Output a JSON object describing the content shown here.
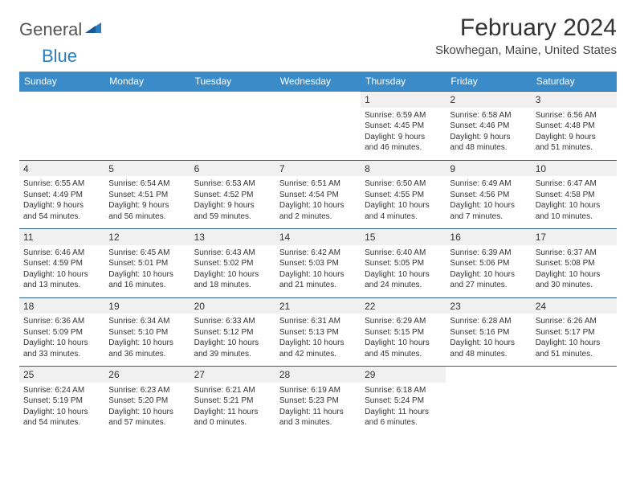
{
  "brand": {
    "part1": "General",
    "part2": "Blue"
  },
  "title": "February 2024",
  "location": "Skowhegan, Maine, United States",
  "colors": {
    "header_bg": "#3b8bc9",
    "border": "#2f5f8a",
    "daynum_bg": "#f0f0f0",
    "logo_gray": "#555555",
    "logo_blue": "#2b7bbf"
  },
  "weekdays": [
    "Sunday",
    "Monday",
    "Tuesday",
    "Wednesday",
    "Thursday",
    "Friday",
    "Saturday"
  ],
  "weeks": [
    [
      {
        "n": "",
        "lines": []
      },
      {
        "n": "",
        "lines": []
      },
      {
        "n": "",
        "lines": []
      },
      {
        "n": "",
        "lines": []
      },
      {
        "n": "1",
        "lines": [
          "Sunrise: 6:59 AM",
          "Sunset: 4:45 PM",
          "Daylight: 9 hours",
          "and 46 minutes."
        ]
      },
      {
        "n": "2",
        "lines": [
          "Sunrise: 6:58 AM",
          "Sunset: 4:46 PM",
          "Daylight: 9 hours",
          "and 48 minutes."
        ]
      },
      {
        "n": "3",
        "lines": [
          "Sunrise: 6:56 AM",
          "Sunset: 4:48 PM",
          "Daylight: 9 hours",
          "and 51 minutes."
        ]
      }
    ],
    [
      {
        "n": "4",
        "lines": [
          "Sunrise: 6:55 AM",
          "Sunset: 4:49 PM",
          "Daylight: 9 hours",
          "and 54 minutes."
        ]
      },
      {
        "n": "5",
        "lines": [
          "Sunrise: 6:54 AM",
          "Sunset: 4:51 PM",
          "Daylight: 9 hours",
          "and 56 minutes."
        ]
      },
      {
        "n": "6",
        "lines": [
          "Sunrise: 6:53 AM",
          "Sunset: 4:52 PM",
          "Daylight: 9 hours",
          "and 59 minutes."
        ]
      },
      {
        "n": "7",
        "lines": [
          "Sunrise: 6:51 AM",
          "Sunset: 4:54 PM",
          "Daylight: 10 hours",
          "and 2 minutes."
        ]
      },
      {
        "n": "8",
        "lines": [
          "Sunrise: 6:50 AM",
          "Sunset: 4:55 PM",
          "Daylight: 10 hours",
          "and 4 minutes."
        ]
      },
      {
        "n": "9",
        "lines": [
          "Sunrise: 6:49 AM",
          "Sunset: 4:56 PM",
          "Daylight: 10 hours",
          "and 7 minutes."
        ]
      },
      {
        "n": "10",
        "lines": [
          "Sunrise: 6:47 AM",
          "Sunset: 4:58 PM",
          "Daylight: 10 hours",
          "and 10 minutes."
        ]
      }
    ],
    [
      {
        "n": "11",
        "lines": [
          "Sunrise: 6:46 AM",
          "Sunset: 4:59 PM",
          "Daylight: 10 hours",
          "and 13 minutes."
        ]
      },
      {
        "n": "12",
        "lines": [
          "Sunrise: 6:45 AM",
          "Sunset: 5:01 PM",
          "Daylight: 10 hours",
          "and 16 minutes."
        ]
      },
      {
        "n": "13",
        "lines": [
          "Sunrise: 6:43 AM",
          "Sunset: 5:02 PM",
          "Daylight: 10 hours",
          "and 18 minutes."
        ]
      },
      {
        "n": "14",
        "lines": [
          "Sunrise: 6:42 AM",
          "Sunset: 5:03 PM",
          "Daylight: 10 hours",
          "and 21 minutes."
        ]
      },
      {
        "n": "15",
        "lines": [
          "Sunrise: 6:40 AM",
          "Sunset: 5:05 PM",
          "Daylight: 10 hours",
          "and 24 minutes."
        ]
      },
      {
        "n": "16",
        "lines": [
          "Sunrise: 6:39 AM",
          "Sunset: 5:06 PM",
          "Daylight: 10 hours",
          "and 27 minutes."
        ]
      },
      {
        "n": "17",
        "lines": [
          "Sunrise: 6:37 AM",
          "Sunset: 5:08 PM",
          "Daylight: 10 hours",
          "and 30 minutes."
        ]
      }
    ],
    [
      {
        "n": "18",
        "lines": [
          "Sunrise: 6:36 AM",
          "Sunset: 5:09 PM",
          "Daylight: 10 hours",
          "and 33 minutes."
        ]
      },
      {
        "n": "19",
        "lines": [
          "Sunrise: 6:34 AM",
          "Sunset: 5:10 PM",
          "Daylight: 10 hours",
          "and 36 minutes."
        ]
      },
      {
        "n": "20",
        "lines": [
          "Sunrise: 6:33 AM",
          "Sunset: 5:12 PM",
          "Daylight: 10 hours",
          "and 39 minutes."
        ]
      },
      {
        "n": "21",
        "lines": [
          "Sunrise: 6:31 AM",
          "Sunset: 5:13 PM",
          "Daylight: 10 hours",
          "and 42 minutes."
        ]
      },
      {
        "n": "22",
        "lines": [
          "Sunrise: 6:29 AM",
          "Sunset: 5:15 PM",
          "Daylight: 10 hours",
          "and 45 minutes."
        ]
      },
      {
        "n": "23",
        "lines": [
          "Sunrise: 6:28 AM",
          "Sunset: 5:16 PM",
          "Daylight: 10 hours",
          "and 48 minutes."
        ]
      },
      {
        "n": "24",
        "lines": [
          "Sunrise: 6:26 AM",
          "Sunset: 5:17 PM",
          "Daylight: 10 hours",
          "and 51 minutes."
        ]
      }
    ],
    [
      {
        "n": "25",
        "lines": [
          "Sunrise: 6:24 AM",
          "Sunset: 5:19 PM",
          "Daylight: 10 hours",
          "and 54 minutes."
        ]
      },
      {
        "n": "26",
        "lines": [
          "Sunrise: 6:23 AM",
          "Sunset: 5:20 PM",
          "Daylight: 10 hours",
          "and 57 minutes."
        ]
      },
      {
        "n": "27",
        "lines": [
          "Sunrise: 6:21 AM",
          "Sunset: 5:21 PM",
          "Daylight: 11 hours",
          "and 0 minutes."
        ]
      },
      {
        "n": "28",
        "lines": [
          "Sunrise: 6:19 AM",
          "Sunset: 5:23 PM",
          "Daylight: 11 hours",
          "and 3 minutes."
        ]
      },
      {
        "n": "29",
        "lines": [
          "Sunrise: 6:18 AM",
          "Sunset: 5:24 PM",
          "Daylight: 11 hours",
          "and 6 minutes."
        ]
      },
      {
        "n": "",
        "lines": []
      },
      {
        "n": "",
        "lines": []
      }
    ]
  ]
}
